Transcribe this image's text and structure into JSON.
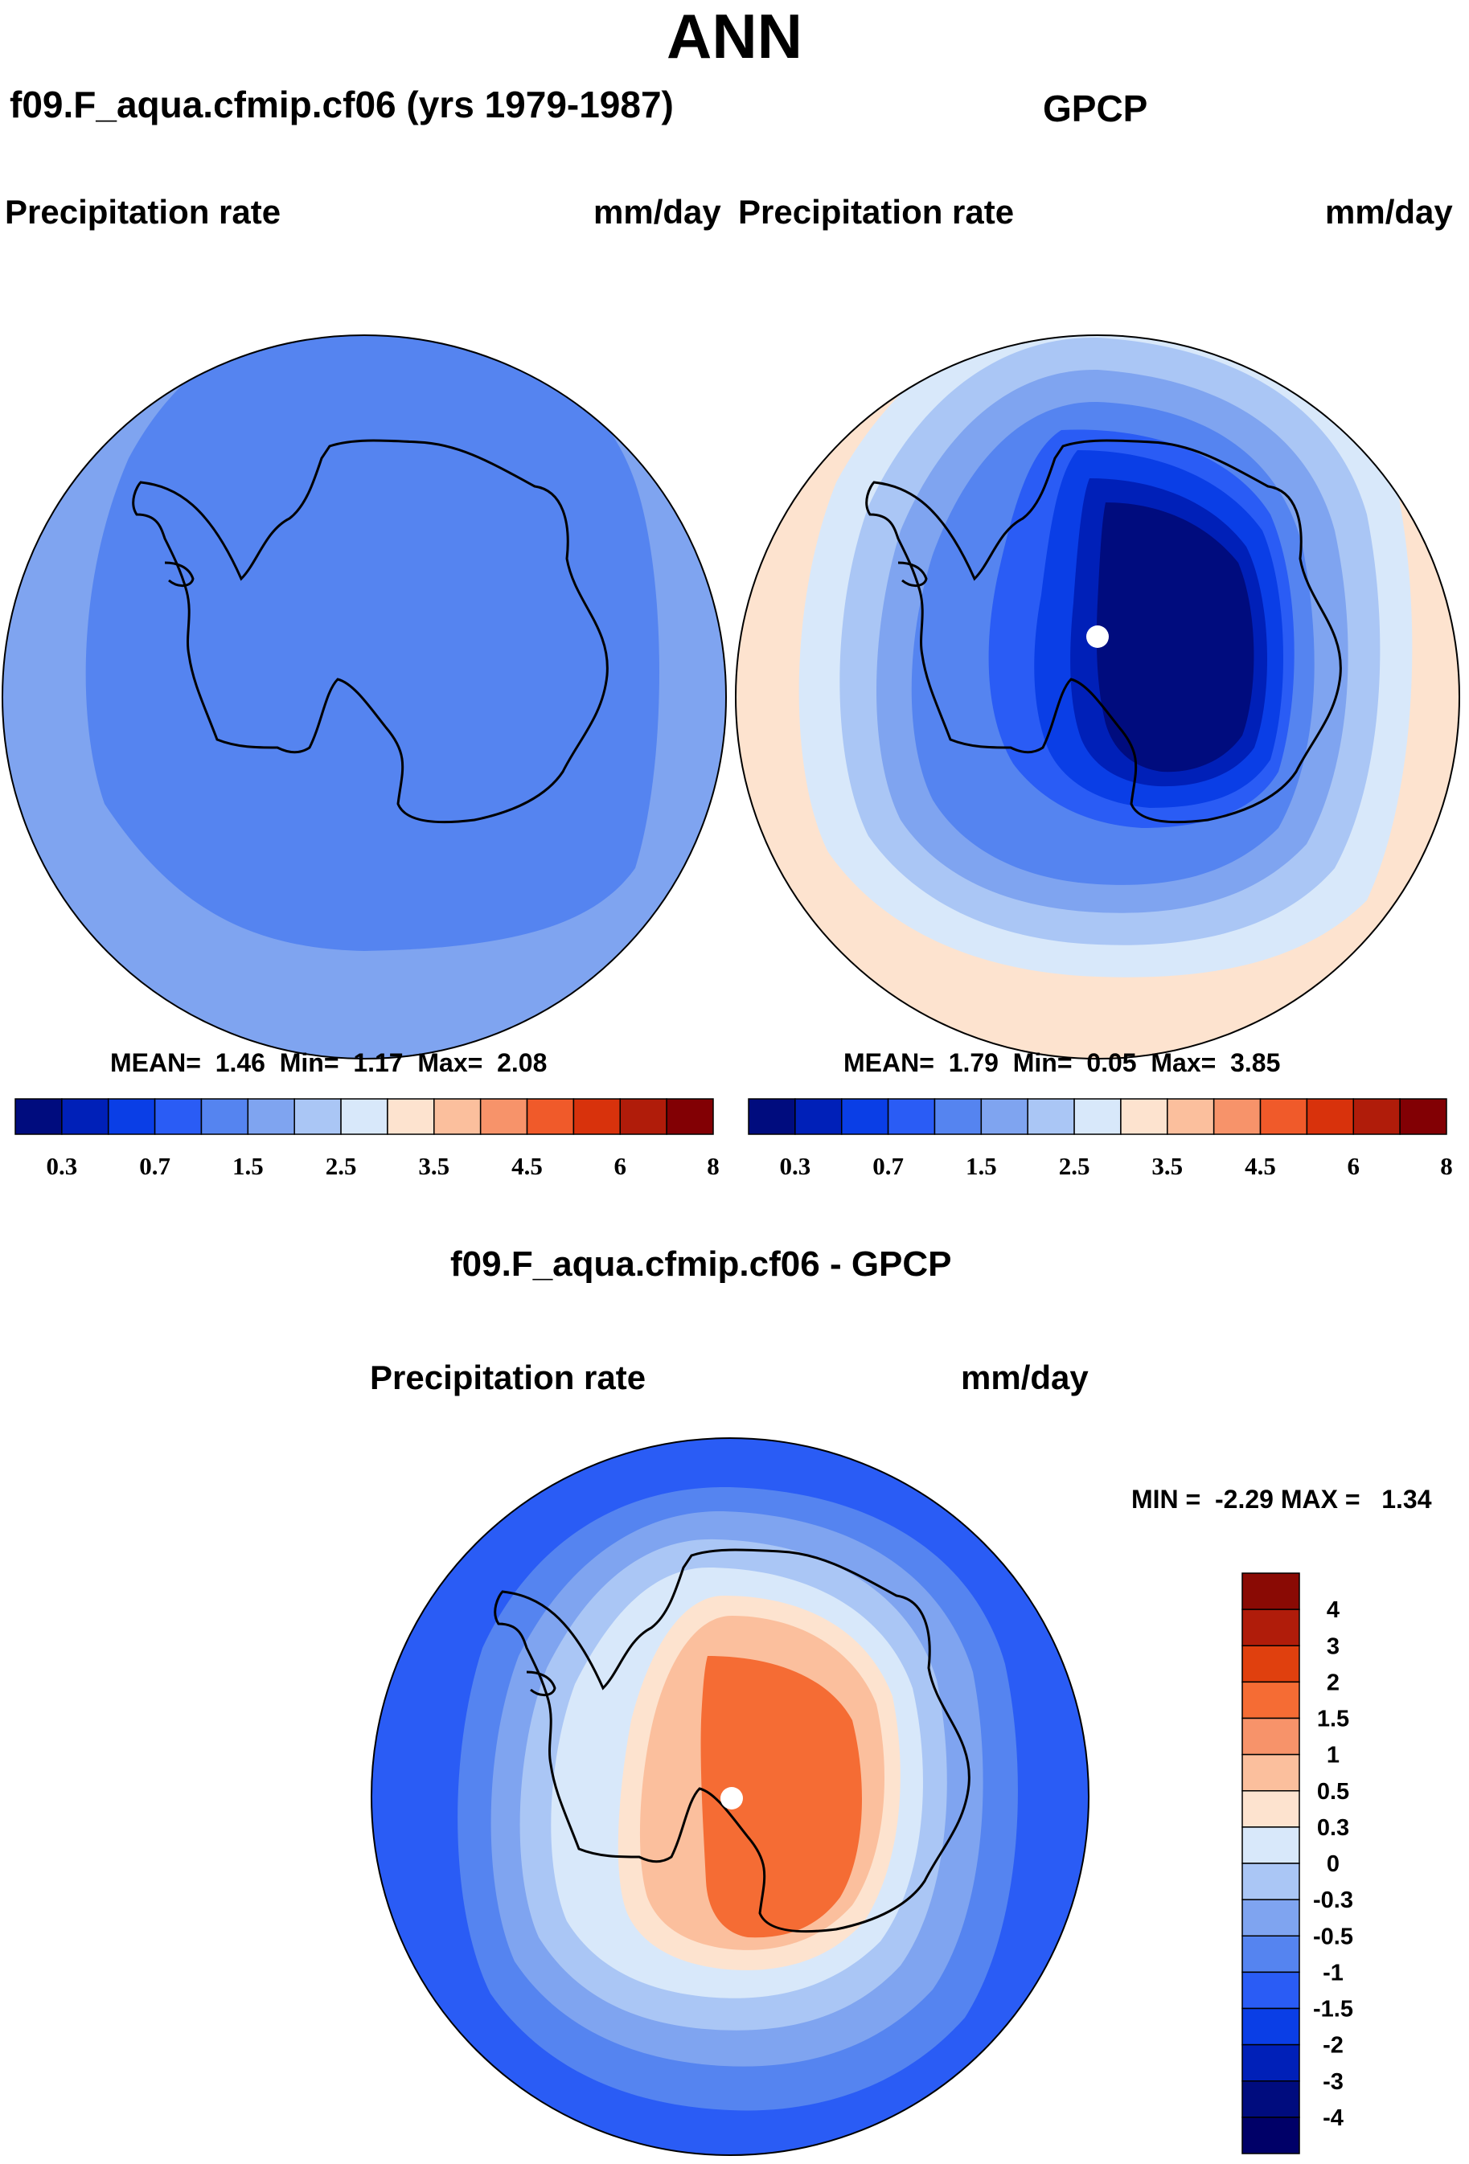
{
  "title": "ANN",
  "panels": {
    "model": {
      "title": "f09.F_aqua.cfmip.cf06 (yrs 1979-1987)",
      "variable": "Precipitation rate",
      "units": "mm/day",
      "stats": {
        "mean_label": "MEAN=",
        "mean": "1.46",
        "min_label": "Min=",
        "min": "1.17",
        "max_label": "Max=",
        "max": "2.08"
      }
    },
    "obs": {
      "title": "GPCP",
      "variable": "Precipitation rate",
      "units": "mm/day",
      "stats": {
        "mean_label": "MEAN=",
        "mean": "1.79",
        "min_label": "Min=",
        "min": "0.05",
        "max_label": "Max=",
        "max": "3.85"
      }
    },
    "diff": {
      "title": "f09.F_aqua.cfmip.cf06 - GPCP",
      "variable": "Precipitation rate",
      "units": "mm/day",
      "minmax": {
        "min_label": "MIN =",
        "min": "-2.29",
        "max_label": "MAX =",
        "max": "1.34"
      }
    }
  },
  "chart_data": [
    {
      "type": "heatmap",
      "projection": "south-polar-stereographic",
      "title": "f09.F_aqua.cfmip.cf06 (yrs 1979-1987)",
      "variable": "Precipitation rate",
      "units": "mm/day",
      "mean": 1.46,
      "min": 1.17,
      "max": 2.08,
      "colorbar_ticks": [
        "0.3",
        "0.7",
        "1.5",
        "2.5",
        "3.5",
        "4.5",
        "6",
        "8"
      ],
      "colorbar_colors": [
        "#000c7e",
        "#0020b8",
        "#0a3ee6",
        "#2a5cf5",
        "#5584f0",
        "#7fa4f0",
        "#aac6f5",
        "#d8e8fa",
        "#fde3cf",
        "#fbbf9d",
        "#f7936a",
        "#f05a2a",
        "#d8320c",
        "#b01c0a",
        "#820004"
      ]
    },
    {
      "type": "heatmap",
      "projection": "south-polar-stereographic",
      "title": "GPCP",
      "variable": "Precipitation rate",
      "units": "mm/day",
      "mean": 1.79,
      "min": 0.05,
      "max": 3.85,
      "colorbar_ticks": [
        "0.3",
        "0.7",
        "1.5",
        "2.5",
        "3.5",
        "4.5",
        "6",
        "8"
      ],
      "colorbar_colors": [
        "#000c7e",
        "#0020b8",
        "#0a3ee6",
        "#2a5cf5",
        "#5584f0",
        "#7fa4f0",
        "#aac6f5",
        "#d8e8fa",
        "#fde3cf",
        "#fbbf9d",
        "#f7936a",
        "#f05a2a",
        "#d8320c",
        "#b01c0a",
        "#820004"
      ]
    },
    {
      "type": "heatmap",
      "projection": "south-polar-stereographic",
      "title": "f09.F_aqua.cfmip.cf06 - GPCP",
      "variable": "Precipitation rate",
      "units": "mm/day",
      "min": -2.29,
      "max": 1.34,
      "colorbar_ticks": [
        "4",
        "3",
        "2",
        "1.5",
        "1",
        "0.5",
        "0.3",
        "0",
        "-0.3",
        "-0.5",
        "-1",
        "-1.5",
        "-2",
        "-3",
        "-4"
      ],
      "colorbar_colors": [
        "#8a0a04",
        "#b01c0a",
        "#e0400e",
        "#f56c34",
        "#f7936a",
        "#fbbf9d",
        "#fde3cf",
        "#d8e8fa",
        "#aac6f5",
        "#7fa4f0",
        "#5584f0",
        "#2a5cf5",
        "#0a3ee6",
        "#0020b8",
        "#000c7e",
        "#000068"
      ]
    }
  ]
}
